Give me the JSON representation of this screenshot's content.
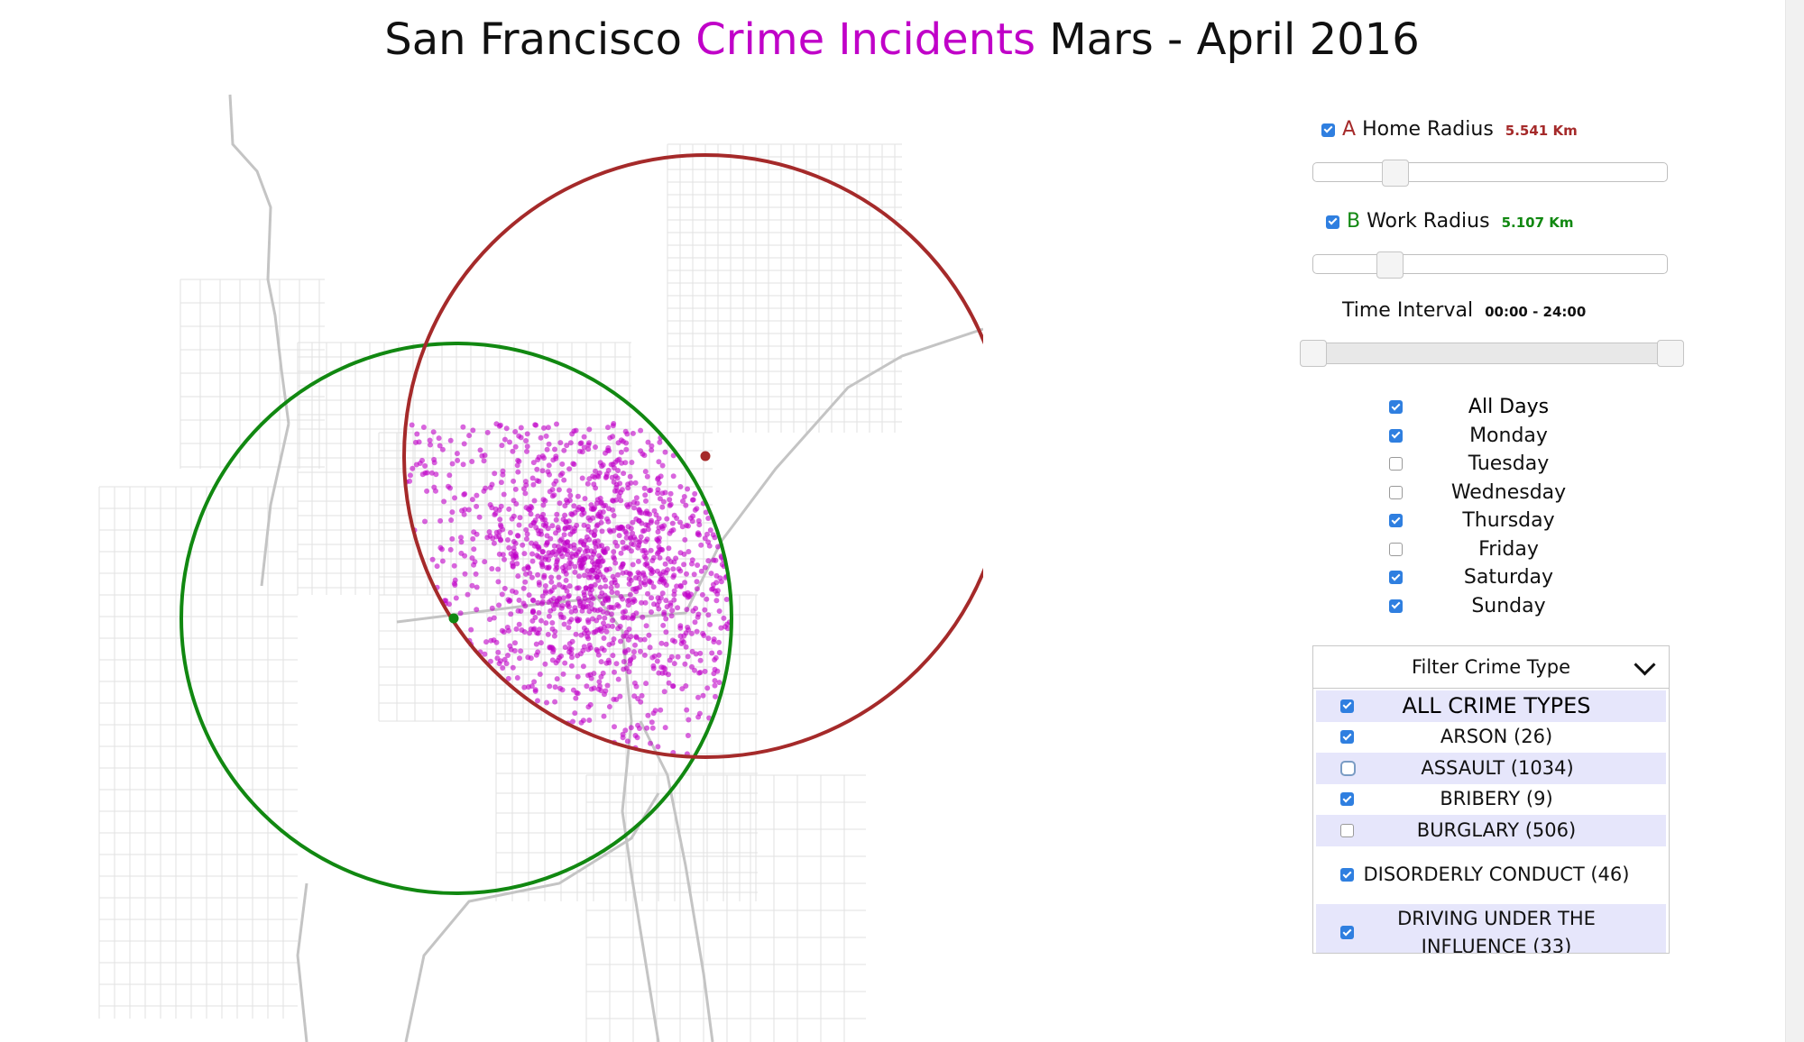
{
  "page": {
    "title_prefix": "San Francisco",
    "title_accent": "Crime Incidents",
    "title_suffix": "Mars - April 2016",
    "accent_color": "#c000c8"
  },
  "controls": {
    "home": {
      "letter": "A",
      "label": "Home Radius",
      "value": "5.541 Km",
      "checked": true,
      "color": "#a52a2a"
    },
    "work": {
      "letter": "B",
      "label": "Work Radius",
      "value": "5.107 Km",
      "checked": true,
      "color": "#118811"
    },
    "time": {
      "label": "Time Interval",
      "value": "00:00 - 24:00"
    }
  },
  "days": [
    {
      "label": "All Days",
      "checked": true
    },
    {
      "label": "Monday",
      "checked": true
    },
    {
      "label": "Tuesday",
      "checked": false
    },
    {
      "label": "Wednesday",
      "checked": false
    },
    {
      "label": "Thursday",
      "checked": true
    },
    {
      "label": "Friday",
      "checked": false
    },
    {
      "label": "Saturday",
      "checked": true
    },
    {
      "label": "Sunday",
      "checked": true
    }
  ],
  "filter": {
    "header": "Filter Crime Type",
    "icon": "chevron-down-icon",
    "types": [
      {
        "label": "ALL CRIME TYPES",
        "checked": true
      },
      {
        "label": "ARSON (26)",
        "checked": true
      },
      {
        "label": "ASSAULT (1034)",
        "checked": false
      },
      {
        "label": "BRIBERY (9)",
        "checked": true
      },
      {
        "label": "BURGLARY (506)",
        "checked": false
      },
      {
        "label": "DISORDERLY CONDUCT (46)",
        "checked": true
      },
      {
        "label": "DRIVING UNDER THE INFLUENCE (33)",
        "checked": true
      }
    ]
  },
  "map": {
    "home_circle_color": "#a52a2a",
    "work_circle_color": "#118811",
    "incident_color": "#c000c8"
  }
}
